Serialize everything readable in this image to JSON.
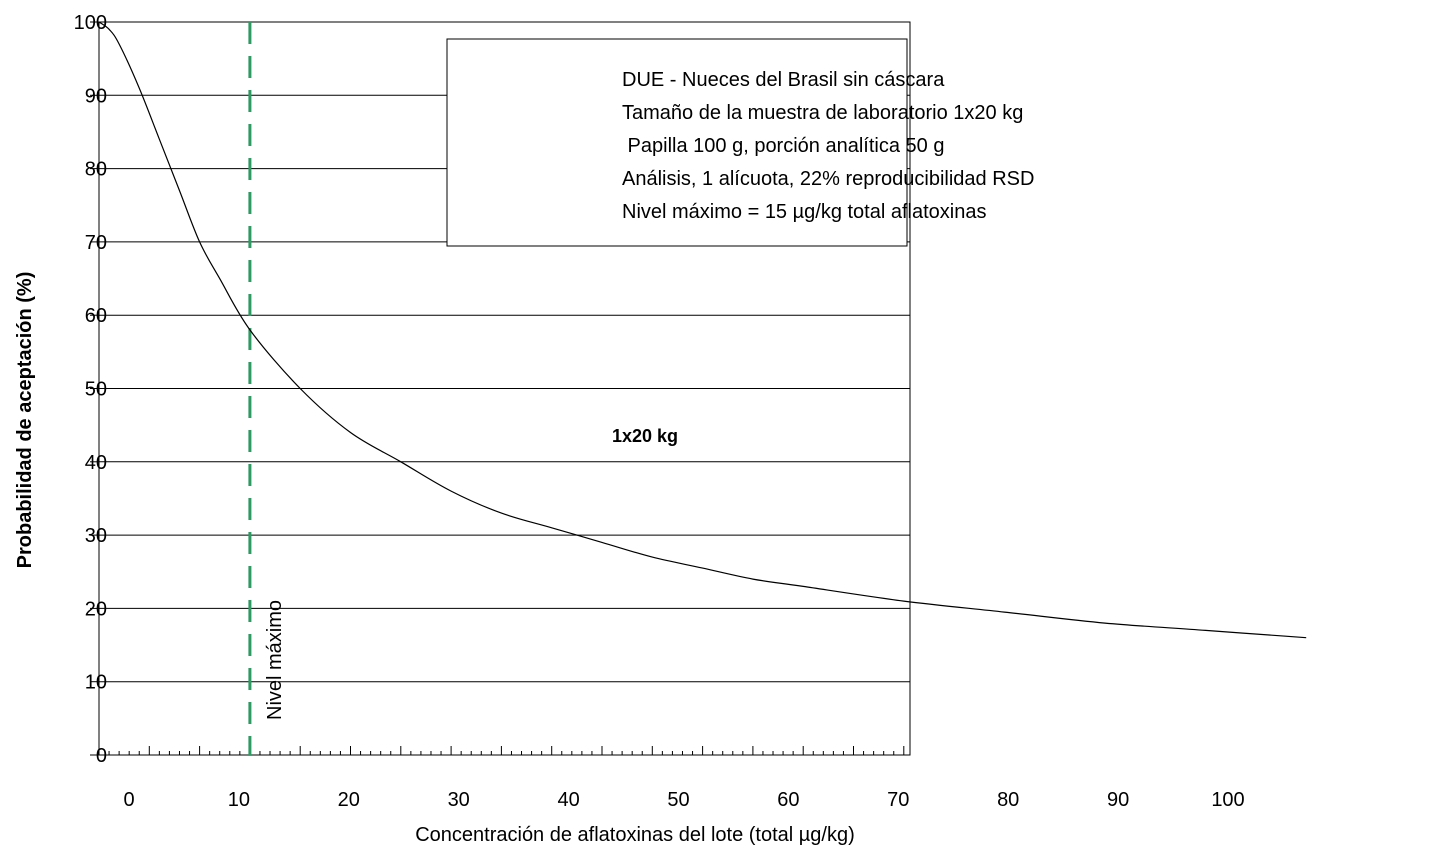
{
  "chart_data": {
    "type": "line",
    "xlabel": "Concentración de aflatoxinas del lote (total µg/kg)",
    "ylabel": "Probabilidad de aceptación (%)",
    "xlim": [
      0,
      120
    ],
    "ylim": [
      0,
      100
    ],
    "x_ticks": [
      0,
      10,
      20,
      30,
      40,
      50,
      60,
      70,
      80,
      90,
      100
    ],
    "y_ticks": [
      0,
      10,
      20,
      30,
      40,
      50,
      60,
      70,
      80,
      90,
      100
    ],
    "grid": "horizontal",
    "series": [
      {
        "name": "1x20 kg",
        "x": [
          0,
          1,
          2,
          4,
          6,
          8,
          10,
          12,
          15,
          20,
          25,
          30,
          35,
          40,
          45,
          50,
          55,
          60,
          65,
          70,
          80,
          90,
          100,
          110,
          120
        ],
        "y": [
          100,
          99,
          97,
          91,
          84,
          77,
          70,
          65,
          58,
          50,
          44,
          40,
          36,
          33,
          31,
          29,
          27,
          25.5,
          24,
          23,
          21,
          19.5,
          18,
          17,
          16
        ]
      }
    ],
    "reference_line": {
      "x": 15,
      "label": "Nivel máximo",
      "color": "#2e9a62",
      "style": "dashed"
    },
    "info_box": [
      "DUE - Nueces del Brasil sin cáscara",
      "Tamaño de la muestra de laboratorio 1x20 kg",
      " Papilla 100 g, porción analítica 50 g",
      "Análisis, 1 alícuota, 22% reproducibilidad RSD",
      "Nivel máximo = 15 µg/kg total aflatoxinas"
    ],
    "colors": {
      "curve": "#000000",
      "grid": "#000000",
      "reference": "#2e9a62"
    }
  }
}
